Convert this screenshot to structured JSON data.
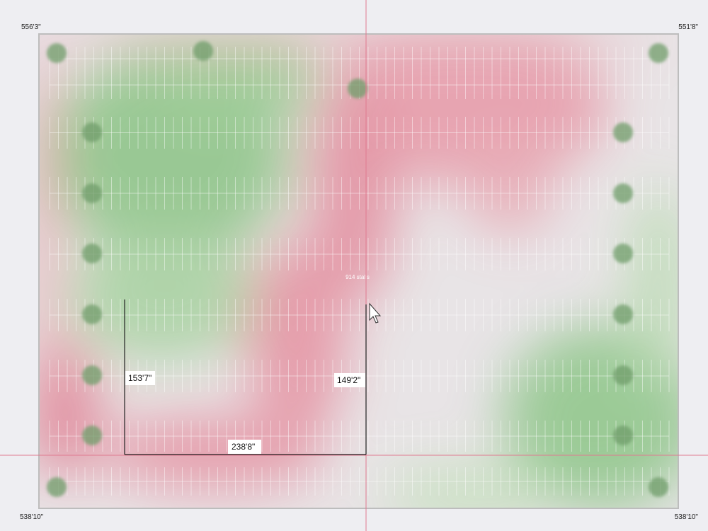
{
  "corners": {
    "top_left": "556'3\"",
    "top_right": "551'8\"",
    "bottom_left": "538'10\"",
    "bottom_right": "538'10\""
  },
  "measurements": {
    "left": "153'7\"",
    "right": "149'2\"",
    "bottom": "238'8\""
  },
  "lot_label": "914 stalls"
}
